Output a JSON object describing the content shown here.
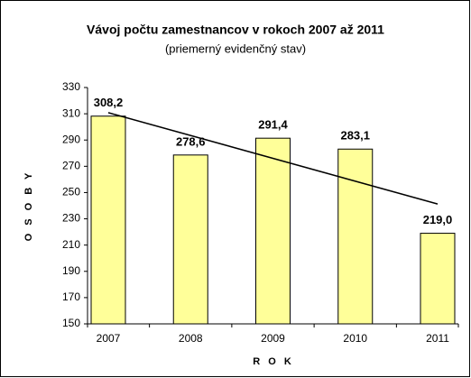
{
  "chart_data": {
    "type": "bar",
    "title": "Vávoj počtu zamestnancov v rokoch 2007 až 2011",
    "subtitle": "(priemerný evidenčný stav)",
    "y_label": "O S O B Y",
    "x_label": "R O K",
    "categories": [
      "2007",
      "2008",
      "2009",
      "2010",
      "2011"
    ],
    "values": [
      308.2,
      278.6,
      291.4,
      283.1,
      219.0
    ],
    "value_labels": [
      "308,2",
      "278,6",
      "291,4",
      "283,1",
      "219,0"
    ],
    "color": "#ffff99",
    "trendline": "linear",
    "ylim": [
      150,
      330
    ],
    "yticks": [
      150,
      170,
      190,
      210,
      230,
      250,
      270,
      290,
      310,
      330
    ],
    "grid": false
  }
}
